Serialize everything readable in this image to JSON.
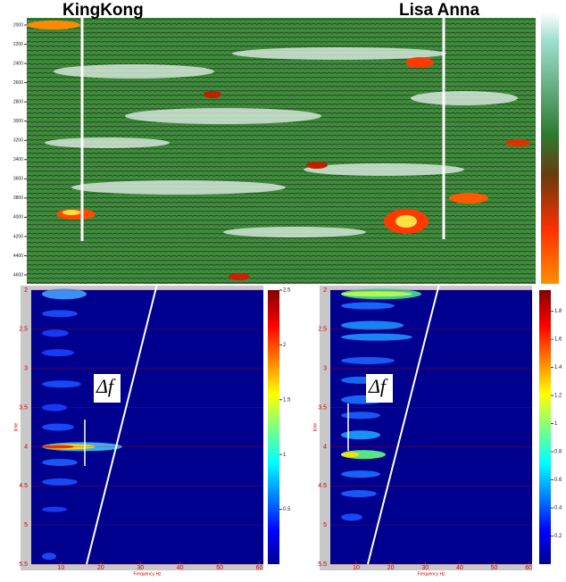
{
  "section": {
    "wells": [
      "KingKong",
      "Lisa Anna"
    ],
    "yticks": [
      2000,
      2200,
      2400,
      2600,
      2800,
      3000,
      3200,
      3400,
      3600,
      3800,
      4000,
      4200,
      4400,
      4600
    ],
    "ylim": [
      2000,
      4600
    ]
  },
  "spectra": [
    {
      "annotation": "Δf",
      "xlabel": "Frequency Hz",
      "ylabel": "time",
      "xlim": [
        2.5,
        61
      ],
      "xticks": [
        10,
        20,
        30,
        40,
        50,
        60
      ],
      "ylim": [
        2,
        5.5
      ],
      "yticks": [
        2,
        2.5,
        3,
        3.5,
        4,
        4.5,
        5,
        5.5
      ],
      "clim": [
        0,
        2.5
      ],
      "cticks": [
        0.5,
        1,
        1.5,
        2,
        2.5
      ]
    },
    {
      "annotation": "Δf",
      "xlabel": "Frequency Hz",
      "ylabel": "time",
      "xlim": [
        2.5,
        61
      ],
      "xticks": [
        10,
        20,
        30,
        40,
        50,
        60
      ],
      "ylim": [
        2,
        5.5
      ],
      "yticks": [
        2,
        2.5,
        3,
        3.5,
        4,
        4.5,
        5,
        5.5
      ],
      "clim": [
        0,
        1.95
      ],
      "cticks": [
        0.2,
        0.4,
        0.6,
        0.8,
        1,
        1.2,
        1.4,
        1.6,
        1.8
      ]
    }
  ]
}
